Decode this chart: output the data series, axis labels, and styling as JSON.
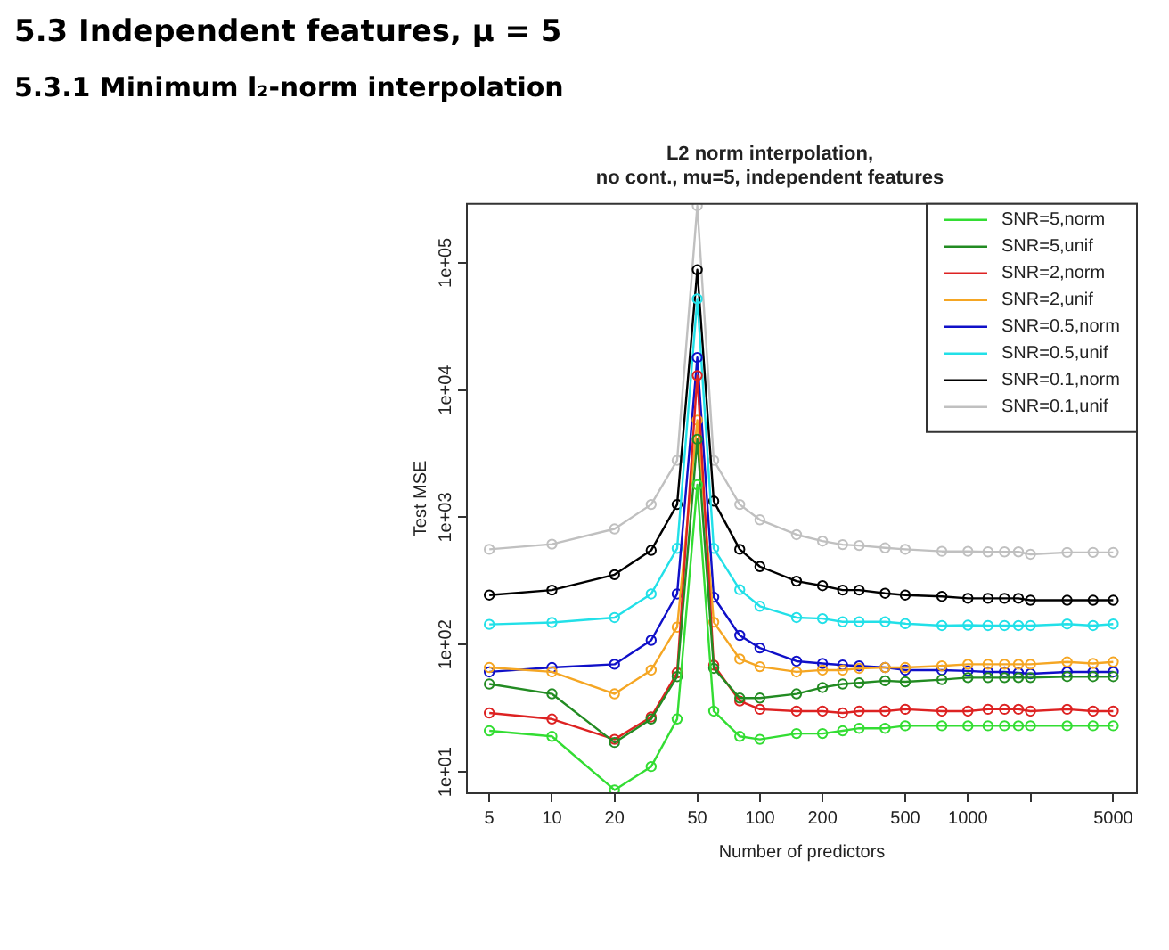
{
  "chart_data": {
    "type": "line",
    "title": "L2 norm interpolation,\nno cont., mu=5, independent features",
    "xlabel": "Number of predictors",
    "ylabel": "Test MSE",
    "annotations": [
      "5.3  Independent features, μ = 5",
      "5.3.1  Minimum l₂-norm interpolation"
    ],
    "log": "xy",
    "grid": false,
    "legend": "top right",
    "marker": "circle",
    "line_style": "solid",
    "x": [
      5,
      10,
      20,
      30,
      40,
      50,
      60,
      80,
      100,
      150,
      200,
      250,
      300,
      400,
      500,
      750,
      1000,
      1250,
      1500,
      1750,
      2000,
      3000,
      4000,
      5000
    ],
    "xlim": [
      3.9,
      6500
    ],
    "xticks": [
      5,
      10,
      20,
      50,
      100,
      200,
      500,
      1000,
      {
        "value": 2000,
        "label": null
      },
      5000
    ],
    "ylim": [
      6.8,
      290000
    ],
    "yticks": [
      {
        "value": 10,
        "label": "1e+01"
      },
      {
        "value": 100,
        "label": "1e+02"
      },
      {
        "value": 1000,
        "label": "1e+03"
      },
      {
        "value": 10000,
        "label": "1e+04"
      },
      {
        "value": 100000,
        "label": "1e+05"
      }
    ],
    "series": [
      {
        "name": "SNR=5,norm",
        "color": "#33dd33",
        "values": [
          21,
          19,
          7.2,
          11,
          26,
          1800,
          30,
          19,
          18,
          20,
          20,
          21,
          22,
          22,
          23,
          23,
          23,
          23,
          23,
          23,
          23,
          23,
          23,
          23
        ]
      },
      {
        "name": "SNR=5,unif",
        "color": "#228b22",
        "values": [
          49,
          41,
          17,
          26,
          56,
          4100,
          65,
          38,
          38,
          41,
          46,
          49,
          50,
          52,
          51,
          53,
          55,
          55,
          55,
          55,
          55,
          56,
          56,
          56
        ]
      },
      {
        "name": "SNR=2,norm",
        "color": "#dd2222",
        "values": [
          29,
          26,
          18,
          27,
          60,
          13000,
          69,
          36,
          31,
          30,
          30,
          29,
          30,
          30,
          31,
          30,
          30,
          31,
          31,
          31,
          30,
          31,
          30,
          30
        ]
      },
      {
        "name": "SNR=2,unif",
        "color": "#f5a623",
        "values": [
          66,
          61,
          41,
          63,
          137,
          5800,
          150,
          77,
          67,
          61,
          63,
          63,
          65,
          66,
          66,
          68,
          70,
          70,
          70,
          70,
          70,
          73,
          71,
          73
        ]
      },
      {
        "name": "SNR=0.5,norm",
        "color": "#1010c8",
        "values": [
          61,
          66,
          70,
          108,
          250,
          18000,
          236,
          118,
          94,
          74,
          71,
          69,
          68,
          66,
          63,
          63,
          62,
          61,
          61,
          60,
          59,
          61,
          61,
          61
        ]
      },
      {
        "name": "SNR=0.5,unif",
        "color": "#22e0e8",
        "values": [
          144,
          149,
          163,
          250,
          570,
          52000,
          570,
          270,
          200,
          163,
          160,
          151,
          151,
          151,
          146,
          141,
          142,
          141,
          141,
          141,
          141,
          145,
          141,
          145
        ]
      },
      {
        "name": "SNR=0.1,norm",
        "color": "#000000",
        "values": [
          245,
          268,
          354,
          550,
          1260,
          88000,
          1340,
          560,
          410,
          315,
          290,
          268,
          268,
          253,
          245,
          239,
          231,
          231,
          231,
          231,
          223,
          223,
          223,
          223
        ]
      },
      {
        "name": "SNR=0.1,unif",
        "color": "#c0c0c0",
        "values": [
          560,
          615,
          810,
          1260,
          2800,
          280000,
          2800,
          1260,
          955,
          730,
          650,
          610,
          600,
          575,
          560,
          540,
          540,
          535,
          535,
          535,
          512,
          530,
          530,
          530
        ]
      }
    ]
  }
}
